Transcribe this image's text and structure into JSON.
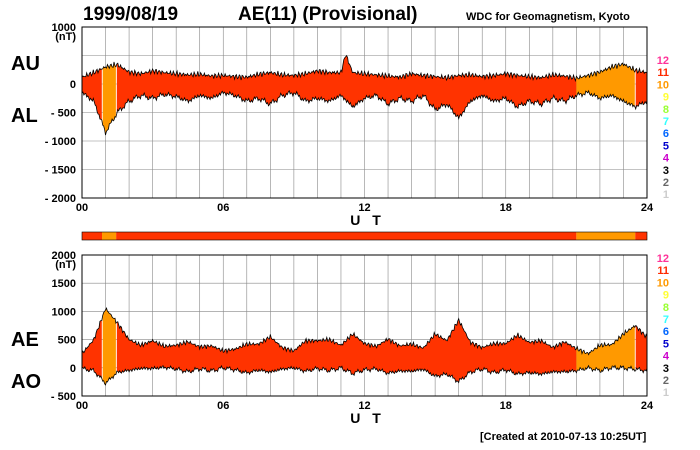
{
  "header": {
    "date": "1999/08/19",
    "title": "AE(11) (Provisional)",
    "organization": "WDC for Geomagnetism, Kyoto",
    "created": "[Created at 2010-07-13 10:25UT]"
  },
  "legend": {
    "levels": [
      "12",
      "11",
      "10",
      "9",
      "8",
      "7",
      "6",
      "5",
      "4",
      "3",
      "2",
      "1"
    ],
    "colors": [
      "#ff3399",
      "#ff2a00",
      "#ff9900",
      "#ffff33",
      "#99ff33",
      "#33ffff",
      "#0066ff",
      "#0000cc",
      "#cc00cc",
      "#000000",
      "#666666",
      "#cccccc"
    ]
  },
  "colors": {
    "main": "#ff3300",
    "orange": "#ff9900",
    "yellow": "#ffcc00"
  },
  "chart_data": [
    {
      "type": "area",
      "panel": "top",
      "labels": {
        "upper": "AU",
        "lower": "AL",
        "unit": "(nT)",
        "xlabel": "U T"
      },
      "ylim": [
        -2000,
        1000
      ],
      "yticks": [
        1000,
        0,
        -500,
        -1000,
        -1500,
        -2000
      ],
      "yticklabels": [
        "1000",
        "0",
        "- 500",
        "- 1000",
        "- 1500",
        "- 2000"
      ],
      "xlim": [
        0,
        24
      ],
      "xticks": [
        0,
        6,
        12,
        18,
        24
      ],
      "xticklabels": [
        "00",
        "06",
        "12",
        "18",
        "24"
      ],
      "series": [
        {
          "name": "AU",
          "x": [
            0,
            0.5,
            1,
            1.5,
            2,
            2.5,
            3,
            3.5,
            4,
            4.5,
            5,
            5.5,
            6,
            6.5,
            7,
            7.5,
            8,
            8.5,
            9,
            9.5,
            10,
            10.5,
            11,
            11.2,
            11.5,
            12,
            12.5,
            13,
            13.5,
            14,
            14.5,
            15,
            15.5,
            16,
            16.5,
            17,
            17.5,
            18,
            18.5,
            19,
            19.5,
            20,
            20.5,
            21,
            21.5,
            22,
            22.5,
            23,
            23.5,
            24
          ],
          "y": [
            120,
            200,
            300,
            340,
            210,
            180,
            230,
            200,
            180,
            160,
            170,
            140,
            150,
            130,
            120,
            170,
            200,
            160,
            150,
            180,
            230,
            200,
            200,
            520,
            200,
            180,
            160,
            140,
            120,
            180,
            150,
            130,
            110,
            150,
            160,
            130,
            150,
            180,
            150,
            130,
            110,
            160,
            140,
            100,
            150,
            210,
            300,
            350,
            240,
            200
          ]
        },
        {
          "name": "AL",
          "x": [
            0,
            0.5,
            1,
            1.5,
            2,
            2.5,
            3,
            3.5,
            4,
            4.5,
            5,
            5.5,
            6,
            6.5,
            7,
            7.5,
            8,
            8.5,
            9,
            9.5,
            10,
            10.5,
            11,
            11.5,
            12,
            12.5,
            13,
            13.5,
            14,
            14.5,
            15,
            15.5,
            16,
            16.5,
            17,
            17.5,
            18,
            18.5,
            19,
            19.5,
            20,
            20.5,
            21,
            21.5,
            22,
            22.5,
            23,
            23.5,
            24
          ],
          "y": [
            -150,
            -300,
            -850,
            -500,
            -300,
            -200,
            -250,
            -180,
            -220,
            -300,
            -200,
            -250,
            -150,
            -200,
            -300,
            -250,
            -350,
            -200,
            -150,
            -300,
            -250,
            -300,
            -200,
            -400,
            -250,
            -200,
            -350,
            -250,
            -300,
            -200,
            -450,
            -350,
            -600,
            -300,
            -200,
            -300,
            -250,
            -400,
            -300,
            -350,
            -250,
            -300,
            -200,
            -150,
            -250,
            -200,
            -300,
            -400,
            -300
          ]
        }
      ],
      "color_bands": [
        {
          "start": 0,
          "end": 0.85,
          "level": "11"
        },
        {
          "start": 0.85,
          "end": 1.45,
          "level": "10"
        },
        {
          "start": 1.45,
          "end": 21.0,
          "level": "11"
        },
        {
          "start": 21.0,
          "end": 23.5,
          "level": "10"
        },
        {
          "start": 23.5,
          "end": 24,
          "level": "11"
        }
      ]
    },
    {
      "type": "area",
      "panel": "bottom",
      "labels": {
        "upper": "AE",
        "lower": "AO",
        "unit": "(nT)",
        "xlabel": "U T"
      },
      "ylim": [
        -500,
        2000
      ],
      "yticks": [
        2000,
        1500,
        1000,
        500,
        0,
        -500
      ],
      "yticklabels": [
        "2000",
        "1500",
        "1000",
        "500",
        "0",
        "- 500"
      ],
      "xlim": [
        0,
        24
      ],
      "xticks": [
        0,
        6,
        12,
        18,
        24
      ],
      "xticklabels": [
        "00",
        "06",
        "12",
        "18",
        "24"
      ],
      "series": [
        {
          "name": "AE",
          "x": [
            0,
            0.5,
            1,
            1.5,
            2,
            2.5,
            3,
            3.5,
            4,
            4.5,
            5,
            5.5,
            6,
            6.5,
            7,
            7.5,
            8,
            8.5,
            9,
            9.5,
            10,
            10.5,
            11,
            11.5,
            12,
            12.5,
            13,
            13.5,
            14,
            14.5,
            15,
            15.5,
            16,
            16.5,
            17,
            17.5,
            18,
            18.5,
            19,
            19.5,
            20,
            20.5,
            21,
            21.5,
            22,
            22.5,
            23,
            23.5,
            24
          ],
          "y": [
            250,
            500,
            1050,
            800,
            500,
            400,
            480,
            380,
            400,
            460,
            370,
            390,
            300,
            330,
            420,
            420,
            550,
            360,
            300,
            480,
            480,
            500,
            400,
            600,
            430,
            380,
            510,
            390,
            420,
            350,
            600,
            480,
            850,
            450,
            360,
            430,
            430,
            580,
            450,
            480,
            360,
            460,
            340,
            250,
            400,
            410,
            600,
            750,
            540
          ]
        },
        {
          "name": "AO",
          "x": [
            0,
            0.5,
            1,
            1.5,
            2,
            2.5,
            3,
            3.5,
            4,
            4.5,
            5,
            5.5,
            6,
            6.5,
            7,
            7.5,
            8,
            8.5,
            9,
            9.5,
            10,
            10.5,
            11,
            11.5,
            12,
            12.5,
            13,
            13.5,
            14,
            14.5,
            15,
            15.5,
            16,
            16.5,
            17,
            17.5,
            18,
            18.5,
            19,
            19.5,
            20,
            20.5,
            21,
            21.5,
            22,
            22.5,
            23,
            23.5,
            24
          ],
          "y": [
            -15,
            -50,
            -275,
            -80,
            -45,
            -10,
            -10,
            10,
            -20,
            -70,
            -15,
            -55,
            0,
            -35,
            -90,
            -40,
            -75,
            -20,
            0,
            -60,
            -10,
            -50,
            0,
            -100,
            -35,
            -20,
            -95,
            -55,
            -60,
            -25,
            -150,
            -110,
            -245,
            -75,
            -20,
            -85,
            -35,
            -110,
            -85,
            -110,
            -70,
            -70,
            -50,
            0,
            -50,
            5,
            0,
            -25,
            -50
          ]
        }
      ],
      "color_bands": [
        {
          "start": 0,
          "end": 0.85,
          "level": "11"
        },
        {
          "start": 0.85,
          "end": 1.45,
          "level": "10"
        },
        {
          "start": 1.45,
          "end": 21.0,
          "level": "11"
        },
        {
          "start": 21.0,
          "end": 23.5,
          "level": "10"
        },
        {
          "start": 23.5,
          "end": 24,
          "level": "11"
        }
      ]
    }
  ]
}
